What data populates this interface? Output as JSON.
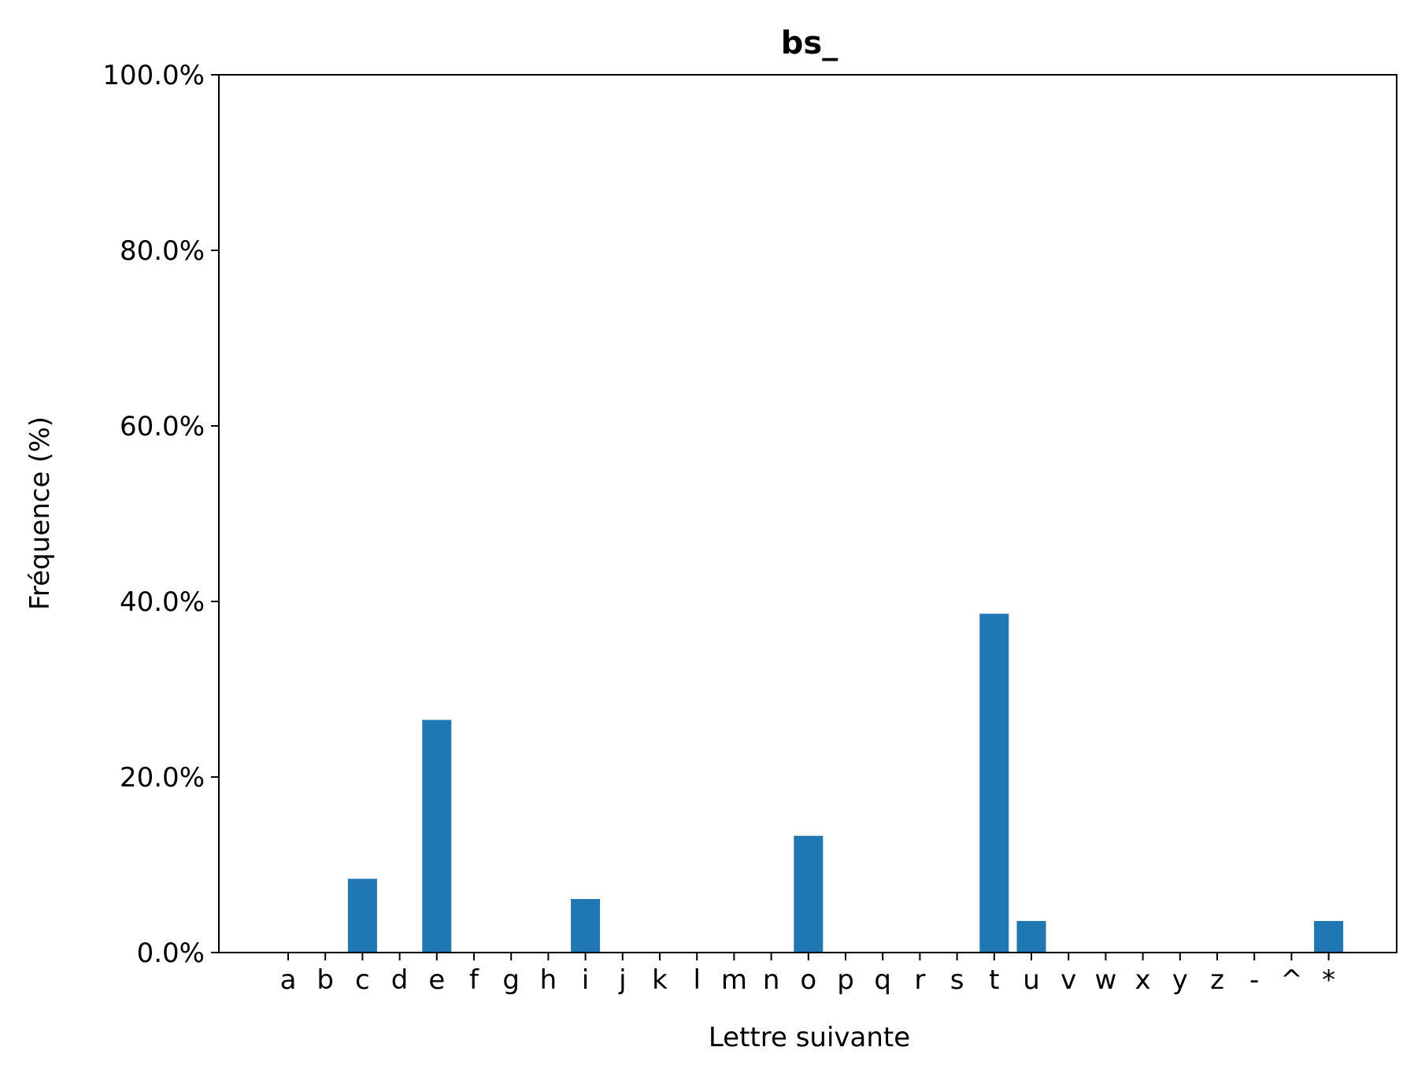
{
  "chart_data": {
    "type": "bar",
    "title": "bs_",
    "xlabel": "Lettre suivante",
    "ylabel": "Fréquence (%)",
    "ylim": [
      0,
      100
    ],
    "yticks": [
      "0.0%",
      "20.0%",
      "40.0%",
      "60.0%",
      "80.0%",
      "100.0%"
    ],
    "ytick_values": [
      0,
      20,
      40,
      60,
      80,
      100
    ],
    "grid": false,
    "bar_color": "#1f77b4",
    "categories": [
      "a",
      "b",
      "c",
      "d",
      "e",
      "f",
      "g",
      "h",
      "i",
      "j",
      "k",
      "l",
      "m",
      "n",
      "o",
      "p",
      "q",
      "r",
      "s",
      "t",
      "u",
      "v",
      "w",
      "x",
      "y",
      "z",
      "-",
      "^",
      "*"
    ],
    "values": [
      0,
      0,
      8.4,
      0,
      26.5,
      0,
      0,
      0,
      6.1,
      0,
      0,
      0,
      0,
      0,
      13.3,
      0,
      0,
      0,
      0,
      38.6,
      3.6,
      0,
      0,
      0,
      0,
      0,
      0,
      0,
      3.6
    ]
  }
}
